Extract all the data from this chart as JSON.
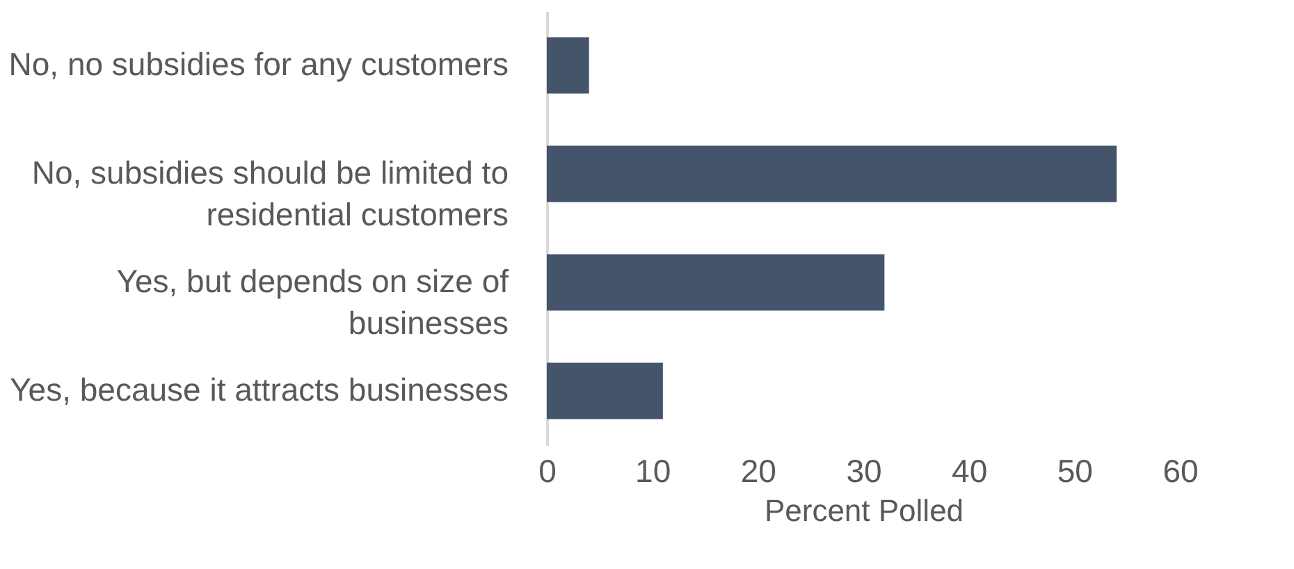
{
  "chart_data": {
    "type": "bar",
    "orientation": "horizontal",
    "xlabel": "Percent Polled",
    "categories": [
      "No, no subsidies for any customers",
      "No, subsidies should be limited to residential customers",
      "Yes, but depends on size of businesses",
      "Yes, because it attracts businesses"
    ],
    "values": [
      4,
      54,
      32,
      11
    ],
    "color": "#44546a",
    "xlim": [
      0,
      60
    ],
    "xticks": [
      0,
      10,
      20,
      30,
      40,
      50,
      60
    ],
    "grid": false
  }
}
